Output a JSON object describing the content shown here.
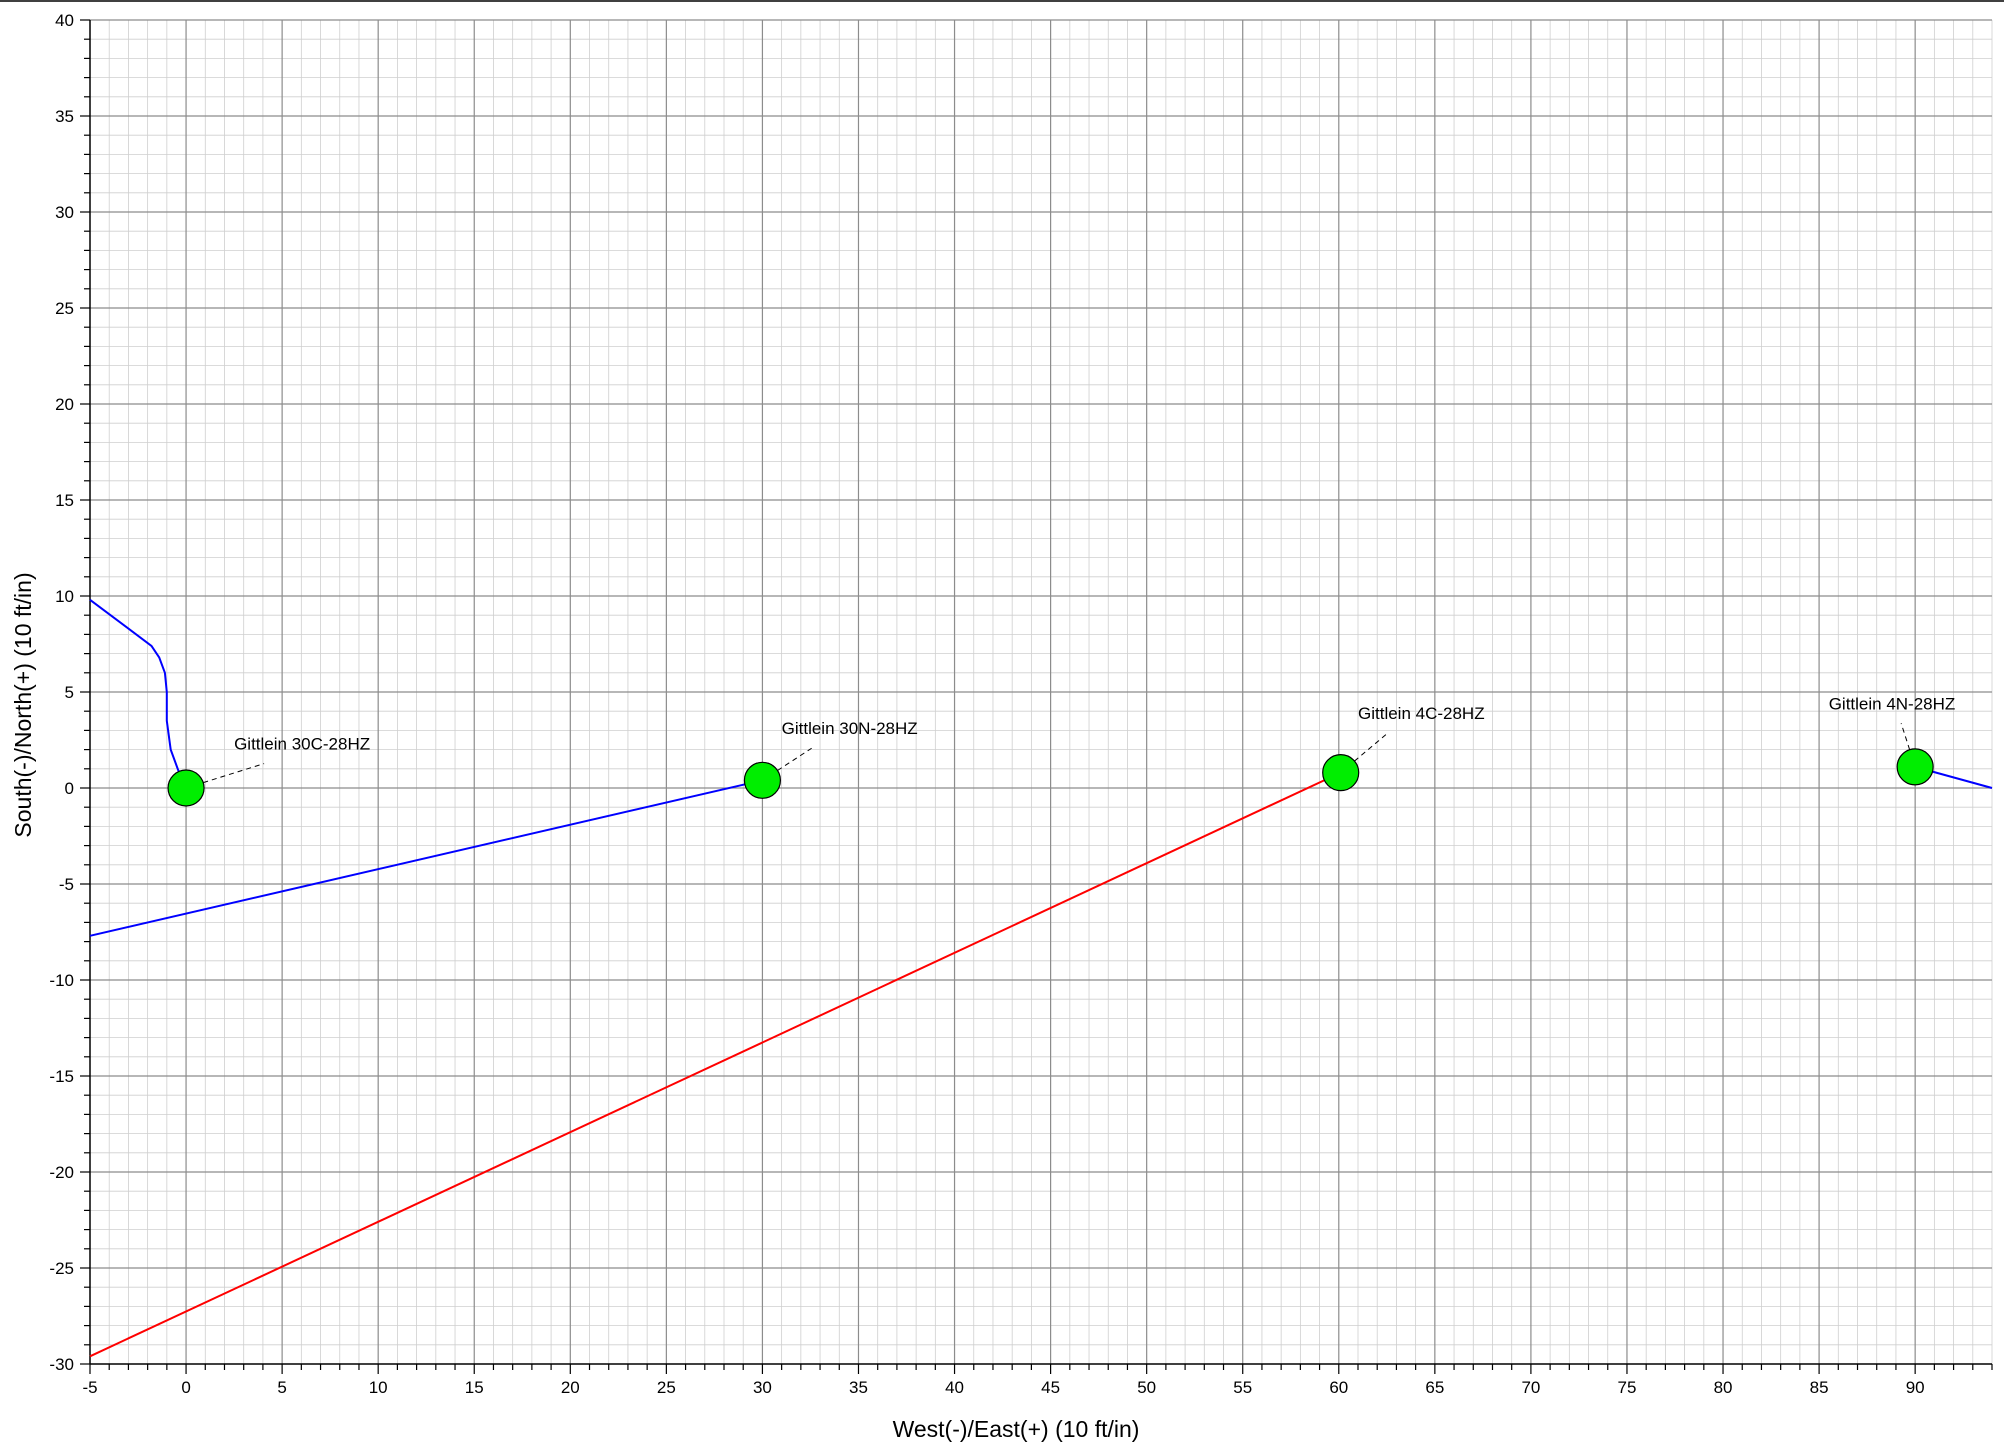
{
  "chart_data": {
    "type": "scatter",
    "title": "",
    "xlabel": "West(-)/East(+) (10 ft/in)",
    "ylabel": "South(-)/North(+) (10 ft/in)",
    "xlim": [
      -5,
      94
    ],
    "ylim": [
      -30,
      40
    ],
    "x_ticks": [
      -5,
      0,
      5,
      10,
      15,
      20,
      25,
      30,
      35,
      40,
      45,
      50,
      55,
      60,
      65,
      70,
      75,
      80,
      85,
      90
    ],
    "y_ticks": [
      -30,
      -25,
      -20,
      -15,
      -10,
      -5,
      0,
      5,
      10,
      15,
      20,
      25,
      30,
      35,
      40
    ],
    "grid": true,
    "wells": [
      {
        "name": "Gittlein 30C-28HZ",
        "x": 0,
        "y": 0,
        "label_x": 2.5,
        "label_y": 2.0
      },
      {
        "name": "Gittlein 30N-28HZ",
        "x": 30,
        "y": 0.4,
        "label_x": 31,
        "label_y": 2.8
      },
      {
        "name": "Gittlein 4C-28HZ",
        "x": 60.1,
        "y": 0.8,
        "label_x": 61,
        "label_y": 3.6
      },
      {
        "name": "Gittlein 4N-28HZ",
        "x": 90,
        "y": 1.1,
        "label_x": 85.5,
        "label_y": 4.1
      }
    ],
    "series": [
      {
        "color": "#0000ff",
        "points": [
          [
            -5,
            9.8
          ],
          [
            -1.8,
            7.4
          ],
          [
            -1.4,
            6.8
          ],
          [
            -1.1,
            6.0
          ],
          [
            -1.0,
            5.0
          ],
          [
            -1.0,
            3.5
          ],
          [
            -0.8,
            2.0
          ],
          [
            -0.4,
            0.9
          ],
          [
            0,
            0
          ]
        ]
      },
      {
        "color": "#0000ff",
        "points": [
          [
            -5,
            -7.7
          ],
          [
            30,
            0.4
          ]
        ]
      },
      {
        "color": "#ff0000",
        "points": [
          [
            -5,
            -29.6
          ],
          [
            60.1,
            0.8
          ]
        ]
      },
      {
        "color": "#0000ff",
        "points": [
          [
            90,
            1.1
          ],
          [
            94,
            0.0
          ]
        ]
      }
    ],
    "colors": {
      "well_fill": "#00ee00",
      "well_stroke": "#000000"
    }
  }
}
